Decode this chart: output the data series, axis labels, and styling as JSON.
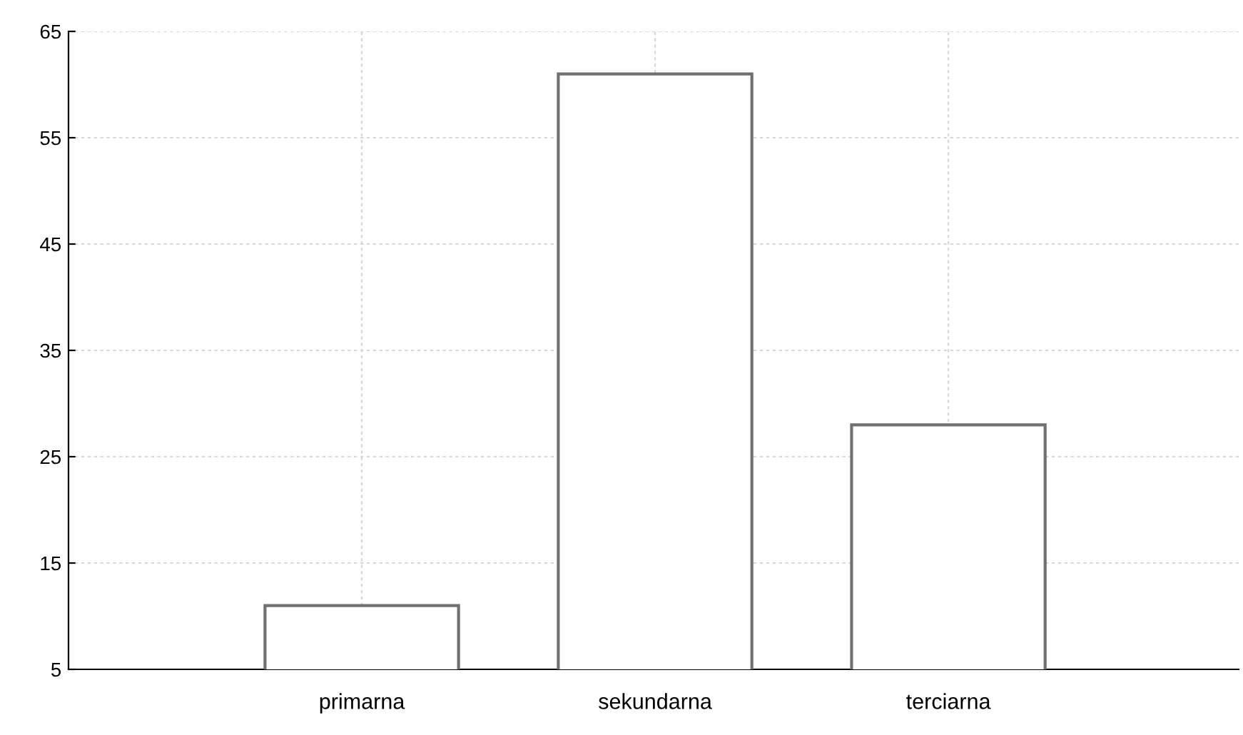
{
  "chart_data": {
    "type": "bar",
    "categories": [
      "primarna",
      "sekundarna",
      "terciarna"
    ],
    "values": [
      11,
      61,
      28
    ],
    "color": "#ffffff",
    "ylim": [
      5,
      65
    ],
    "yticks": [
      5,
      15,
      25,
      35,
      45,
      55,
      65
    ],
    "grid": true,
    "legend": false
  }
}
